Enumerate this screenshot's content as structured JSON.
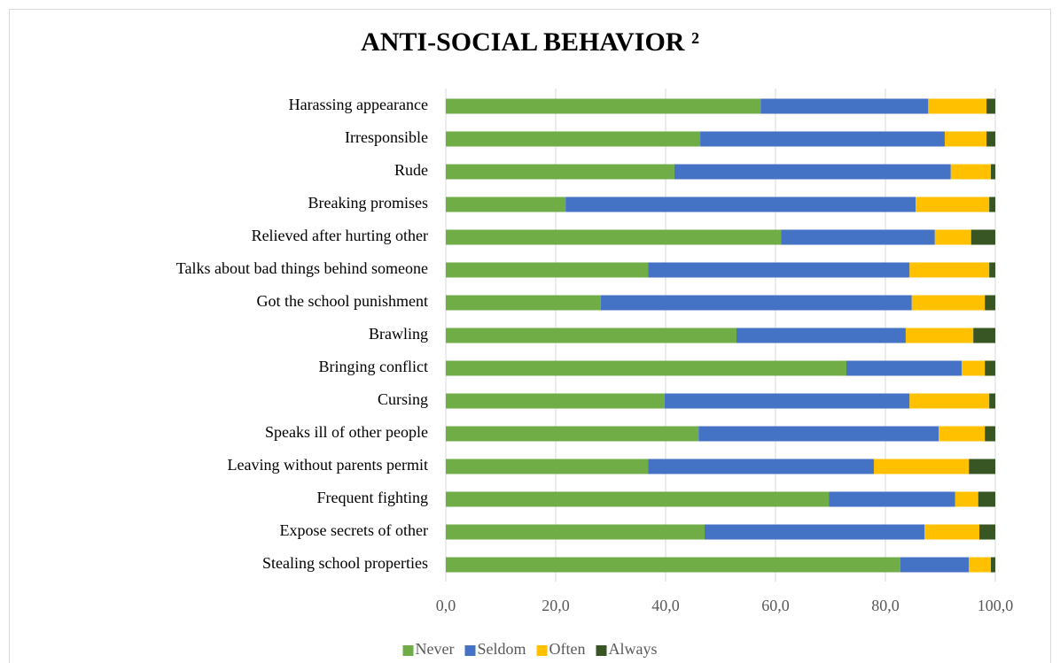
{
  "chart_data": {
    "type": "stacked-bar-horizontal",
    "title": "ANTI-SOCIAL BEHAVIOR ²",
    "categories": [
      "Harassing appearance",
      "Irresponsible",
      "Rude",
      "Breaking promises",
      "Relieved after hurting other",
      "Talks about bad things behind someone",
      "Got the school punishment",
      "Brawling",
      "Bringing conflict",
      "Cursing",
      "Speaks ill of other people",
      "Leaving without parents permit",
      "Frequent fighting",
      "Expose secrets of other",
      "Stealing school  properties"
    ],
    "series": [
      {
        "name": "Never",
        "color": "#70ad47",
        "values": [
          57.3,
          46.3,
          41.6,
          21.8,
          61.0,
          36.8,
          28.2,
          52.9,
          72.9,
          39.8,
          46.0,
          36.8,
          69.7,
          47.1,
          82.7
        ]
      },
      {
        "name": "Seldom",
        "color": "#4472c4",
        "values": [
          30.5,
          44.5,
          50.3,
          63.7,
          28.0,
          47.6,
          56.6,
          30.8,
          21.0,
          44.6,
          43.7,
          41.1,
          23.0,
          40.0,
          12.5
        ]
      },
      {
        "name": "Often",
        "color": "#ffc000",
        "values": [
          10.6,
          7.6,
          7.3,
          13.4,
          6.6,
          14.5,
          13.3,
          12.3,
          4.2,
          14.5,
          8.4,
          17.3,
          4.2,
          10.0,
          4.0
        ]
      },
      {
        "name": "Always",
        "color": "#375623",
        "values": [
          1.6,
          1.6,
          0.8,
          1.1,
          4.4,
          1.1,
          1.9,
          4.0,
          1.9,
          1.1,
          1.9,
          4.8,
          3.1,
          2.9,
          0.8
        ]
      }
    ],
    "xlim": [
      0,
      100
    ],
    "xticks": [
      {
        "value": 0,
        "label": "0,0"
      },
      {
        "value": 20,
        "label": "20,0"
      },
      {
        "value": 40,
        "label": "40,0"
      },
      {
        "value": 60,
        "label": "60,0"
      },
      {
        "value": 80,
        "label": "80,0"
      },
      {
        "value": 100,
        "label": "100,0"
      }
    ],
    "grid": true,
    "legend": "bottom"
  }
}
